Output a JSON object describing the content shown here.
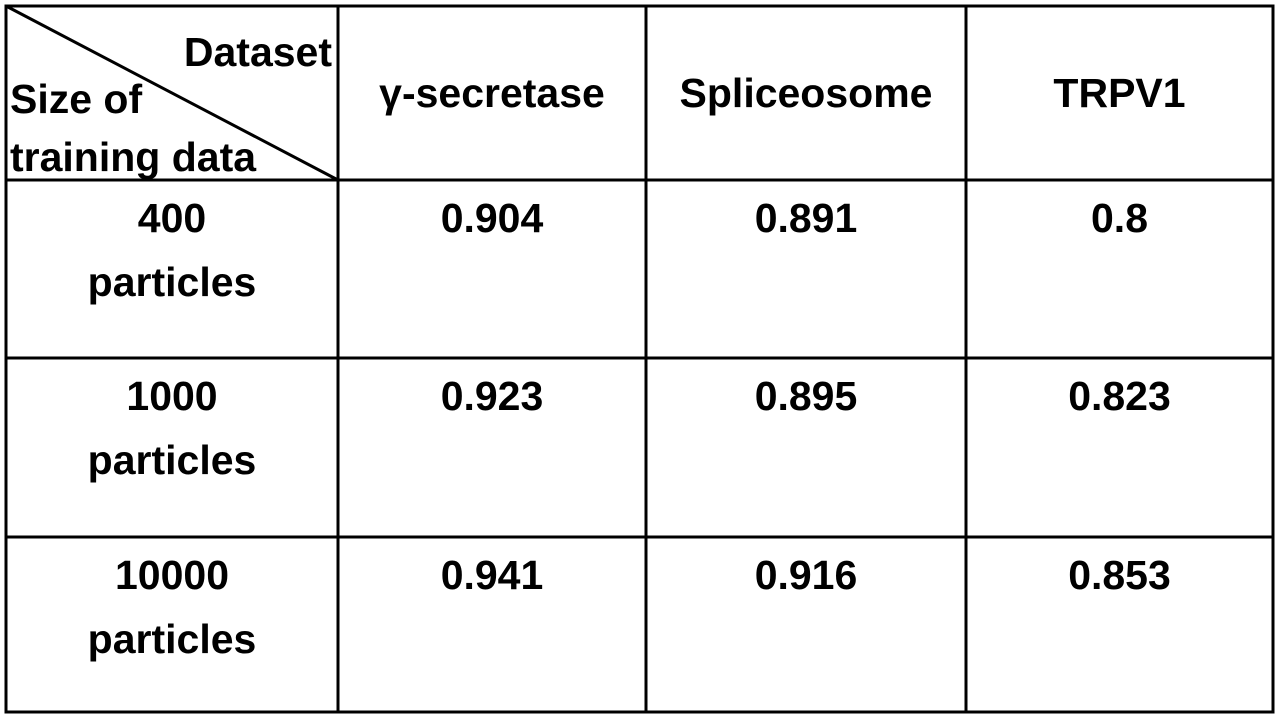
{
  "table": {
    "corner": {
      "column_label": "Dataset",
      "row_label": "Size of training data"
    },
    "columns": [
      "γ-secretase",
      "Spliceosome",
      "TRPV1"
    ],
    "rows": [
      {
        "label": "400 particles",
        "values": [
          0.904,
          0.891,
          0.8
        ]
      },
      {
        "label": "1000 particles",
        "values": [
          0.923,
          0.895,
          0.823
        ]
      },
      {
        "label": "10000 particles",
        "values": [
          0.941,
          0.916,
          0.853
        ]
      }
    ]
  }
}
